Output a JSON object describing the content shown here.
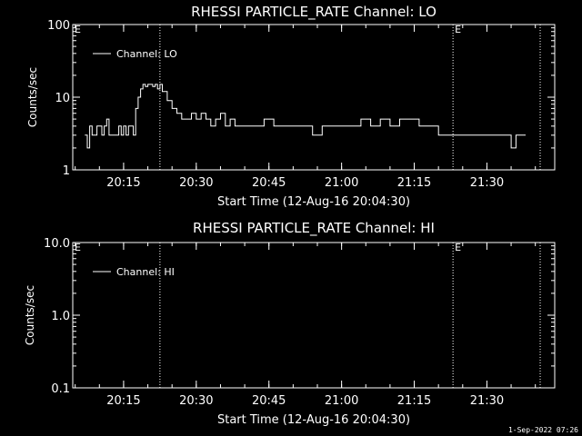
{
  "footer": "1-Sep-2022 07:26",
  "chart_data": [
    {
      "type": "line",
      "title": "RHESSI PARTICLE_RATE Channel: LO",
      "xlabel": "Start Time (12-Aug-16 20:04:30)",
      "ylabel": "Counts/sec",
      "yscale": "log",
      "ylim": [
        1,
        100
      ],
      "ytick_labels": [
        "1",
        "10",
        "100"
      ],
      "xlim": [
        "20:04:30",
        "21:44:00"
      ],
      "x_ticks": [
        "20:15",
        "20:30",
        "20:45",
        "21:00",
        "21:15",
        "21:30"
      ],
      "legend": "Channel: LO",
      "legend_position": "top-left",
      "vlines": [
        "20:22:30",
        "21:23:00",
        "21:41:00"
      ],
      "markers": [
        {
          "label": "E",
          "at": "20:04:30"
        },
        {
          "label": "E",
          "at": "21:23:00"
        }
      ],
      "series": [
        {
          "x": [
            "20:07",
            "20:07:30",
            "20:08",
            "20:08:30",
            "20:09",
            "20:09:30",
            "20:10",
            "20:10:30",
            "20:11",
            "20:11:30",
            "20:12",
            "20:12:30",
            "20:13",
            "20:13:30",
            "20:14",
            "20:14:30",
            "20:15",
            "20:15:30",
            "20:16",
            "20:16:30",
            "20:17",
            "20:17:30",
            "20:18",
            "20:18:30",
            "20:19",
            "20:19:30",
            "20:20",
            "20:20:30",
            "20:21",
            "20:21:30",
            "20:22",
            "20:22:30",
            "20:23",
            "20:24",
            "20:25",
            "20:26",
            "20:27",
            "20:28",
            "20:29",
            "20:30",
            "20:31",
            "20:32",
            "20:33",
            "20:34",
            "20:35",
            "20:36",
            "20:37",
            "20:38",
            "20:40",
            "20:42",
            "20:44",
            "20:46",
            "20:48",
            "20:50",
            "20:52",
            "20:54",
            "20:56",
            "20:58",
            "21:00",
            "21:02",
            "21:04",
            "21:06",
            "21:08",
            "21:10",
            "21:12",
            "21:14",
            "21:16",
            "21:18",
            "21:20",
            "21:22",
            "21:24",
            "21:26",
            "21:28",
            "21:29",
            "21:30",
            "21:32",
            "21:34",
            "21:35",
            "21:36",
            "21:37",
            "21:38"
          ],
          "values": [
            3,
            2,
            4,
            3,
            3,
            4,
            4,
            3,
            4,
            5,
            3,
            3,
            3,
            3,
            4,
            3,
            4,
            3,
            4,
            4,
            3,
            7,
            10,
            13,
            15,
            14,
            15,
            15,
            14,
            15,
            13,
            15,
            12,
            9,
            7,
            6,
            5,
            5,
            6,
            5,
            6,
            5,
            4,
            5,
            6,
            4,
            5,
            4,
            4,
            4,
            5,
            4,
            4,
            4,
            4,
            3,
            4,
            4,
            4,
            4,
            5,
            4,
            5,
            4,
            5,
            5,
            4,
            4,
            3,
            3,
            3,
            3,
            3,
            3,
            3,
            3,
            3,
            2,
            3,
            3,
            3
          ]
        }
      ]
    },
    {
      "type": "line",
      "title": "RHESSI PARTICLE_RATE Channel: HI",
      "xlabel": "Start Time (12-Aug-16 20:04:30)",
      "ylabel": "Counts/sec",
      "yscale": "log",
      "ylim": [
        0.1,
        10
      ],
      "ytick_labels": [
        "0.1",
        "1.0",
        "10.0"
      ],
      "xlim": [
        "20:04:30",
        "21:44:00"
      ],
      "x_ticks": [
        "20:15",
        "20:30",
        "20:45",
        "21:00",
        "21:15",
        "21:30"
      ],
      "legend": "Channel: HI",
      "legend_position": "top-left",
      "vlines": [
        "20:22:30",
        "21:23:00",
        "21:41:00"
      ],
      "markers": [
        {
          "label": "E",
          "at": "20:04:30"
        },
        {
          "label": "E",
          "at": "21:23:00"
        }
      ],
      "series": []
    }
  ]
}
